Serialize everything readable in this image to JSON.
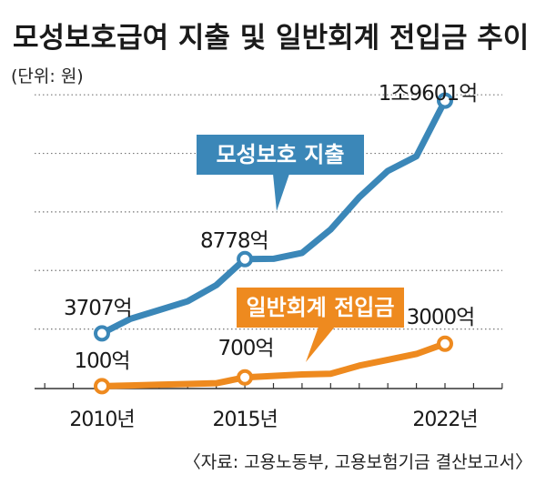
{
  "title": "모성보호급여 지출 및 일반회계 전입금 추이",
  "unit_label": "(단위: 원)",
  "source": "〈자료: 고용노동부, 고용보험기금 결산보고서〉",
  "colors": {
    "blue": "#3b87b8",
    "orange": "#ee8a1f",
    "grid": "#777777"
  },
  "chart_data": {
    "type": "line",
    "title": "모성보호급여 지출 및 일반회계 전입금 추이",
    "x": [
      2010,
      2011,
      2012,
      2013,
      2014,
      2015,
      2016,
      2017,
      2018,
      2019,
      2020,
      2021,
      2022
    ],
    "x_tick_labels": [
      {
        "x": 2010,
        "label": "2010년"
      },
      {
        "x": 2015,
        "label": "2015년"
      },
      {
        "x": 2022,
        "label": "2022년"
      }
    ],
    "series": [
      {
        "name": "모성보호 지출",
        "color": "#3b87b8",
        "values": [
          3707,
          4700,
          5300,
          5900,
          7000,
          8778,
          8800,
          9200,
          10800,
          13000,
          14800,
          15800,
          19601
        ],
        "labels": [
          {
            "x": 2010,
            "text": "3707억"
          },
          {
            "x": 2015,
            "text": "8778억"
          },
          {
            "x": 2022,
            "text": "1조9601억"
          }
        ]
      },
      {
        "name": "일반회계 전입금",
        "color": "#ee8a1f",
        "values": [
          100,
          150,
          200,
          250,
          300,
          700,
          800,
          900,
          950,
          1500,
          1900,
          2300,
          3000
        ],
        "labels": [
          {
            "x": 2010,
            "text": "100억"
          },
          {
            "x": 2015,
            "text": "700억"
          },
          {
            "x": 2022,
            "text": "3000억"
          }
        ]
      }
    ],
    "ylim": [
      0,
      22000
    ],
    "grid": true
  }
}
